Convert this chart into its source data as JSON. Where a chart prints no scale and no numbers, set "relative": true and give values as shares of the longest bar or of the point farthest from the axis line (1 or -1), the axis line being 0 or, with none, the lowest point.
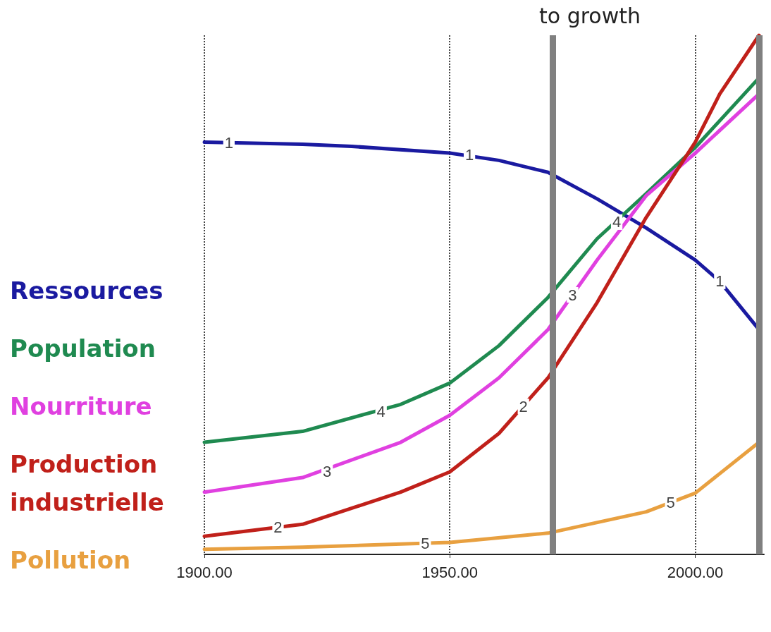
{
  "chart_data": {
    "type": "line",
    "title": "to growth",
    "relative": true,
    "x": [
      1900,
      1920,
      1930,
      1950,
      1960,
      1970,
      1980,
      1990,
      2000,
      2005,
      2013
    ],
    "series": [
      {
        "name": "Ressources",
        "color": "#1a1aa0",
        "values": [
          0.794,
          0.79,
          0.786,
          0.773,
          0.759,
          0.736,
          0.685,
          0.629,
          0.567,
          0.526,
          0.433
        ]
      },
      {
        "name": "Population",
        "color": "#1f8a50",
        "x": [
          1900,
          1920,
          1940,
          1950,
          1960,
          1970,
          1980,
          1990,
          2000,
          2013
        ],
        "values": [
          0.216,
          0.237,
          0.289,
          0.33,
          0.402,
          0.495,
          0.608,
          0.695,
          0.784,
          0.918
        ]
      },
      {
        "name": "Nourriture",
        "color": "#e040e0",
        "x": [
          1900,
          1920,
          1940,
          1950,
          1960,
          1970,
          1980,
          1990,
          2000,
          2013
        ],
        "values": [
          0.12,
          0.148,
          0.216,
          0.268,
          0.34,
          0.433,
          0.567,
          0.691,
          0.773,
          0.887
        ]
      },
      {
        "name": "Production industrielle",
        "color": "#c0201a",
        "x": [
          1900,
          1920,
          1940,
          1950,
          1960,
          1970,
          1980,
          1990,
          2000,
          2005,
          2013
        ],
        "values": [
          0.035,
          0.058,
          0.12,
          0.159,
          0.233,
          0.34,
          0.485,
          0.649,
          0.794,
          0.887,
          1
        ]
      },
      {
        "name": "Pollution",
        "color": "#e8a040",
        "x": [
          1900,
          1920,
          1950,
          1970,
          1990,
          2000,
          2013
        ],
        "values": [
          0.01,
          0.014,
          0.023,
          0.041,
          0.082,
          0.118,
          0.216
        ]
      }
    ],
    "annotations": [
      {
        "text": "1",
        "x": 1905,
        "y": 0.793
      },
      {
        "text": "1",
        "x": 1954,
        "y": 0.77
      },
      {
        "text": "1",
        "x": 2005,
        "y": 0.526
      },
      {
        "text": "2",
        "x": 1915,
        "y": 0.052
      },
      {
        "text": "2",
        "x": 1965,
        "y": 0.285
      },
      {
        "text": "3",
        "x": 1925,
        "y": 0.16
      },
      {
        "text": "3",
        "x": 1975,
        "y": 0.5
      },
      {
        "text": "4",
        "x": 1936,
        "y": 0.275
      },
      {
        "text": "4",
        "x": 1984,
        "y": 0.64
      },
      {
        "text": "5",
        "x": 1945,
        "y": 0.021
      },
      {
        "text": "5",
        "x": 1995,
        "y": 0.1
      }
    ],
    "xlim": [
      1900,
      2014
    ],
    "xticks": [
      {
        "value": 1900,
        "label": "1900.00"
      },
      {
        "value": 1950,
        "label": "1950.00"
      },
      {
        "value": 2000,
        "label": "2000.00"
      }
    ],
    "ref_lines": [
      {
        "axis": "x",
        "value": 1971,
        "color": "#808080"
      },
      {
        "axis": "x",
        "value": 2013,
        "color": "#808080"
      }
    ],
    "grid": "x",
    "legend": "left",
    "marker": "none",
    "line_style": "solid"
  }
}
